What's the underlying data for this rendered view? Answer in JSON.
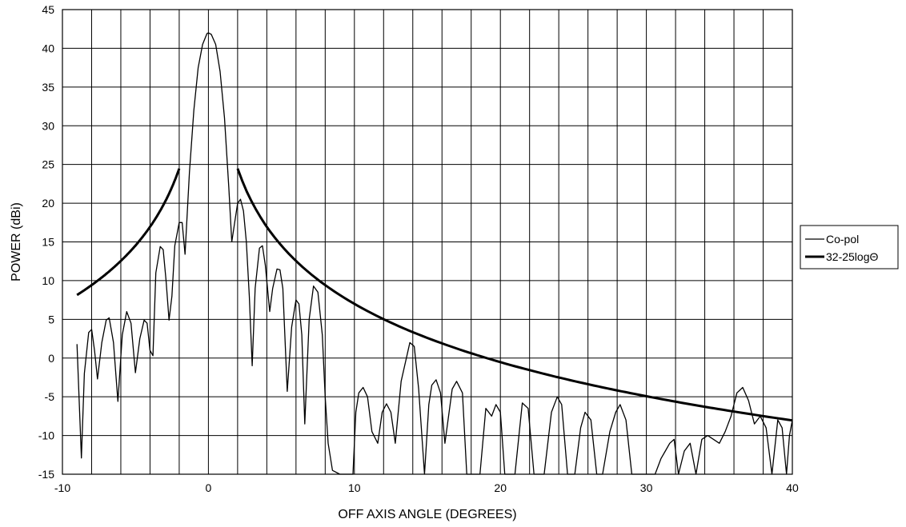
{
  "chart_data": {
    "type": "line",
    "xlabel": "OFF AXIS ANGLE (DEGREES)",
    "ylabel": "POWER (dBi)",
    "xlim": [
      -10,
      40
    ],
    "ylim": [
      -15,
      45
    ],
    "x_ticks": [
      -10,
      0,
      10,
      20,
      30,
      40
    ],
    "x_tick_labels": [
      "-10",
      "0",
      "10",
      "20",
      "30",
      "40"
    ],
    "x_minor_step": 2,
    "y_ticks": [
      -15,
      -10,
      -5,
      0,
      5,
      10,
      15,
      20,
      25,
      30,
      35,
      40,
      45
    ],
    "y_tick_labels": [
      "-15",
      "-10",
      "-5",
      "0",
      "5",
      "10",
      "15",
      "20",
      "25",
      "30",
      "35",
      "40",
      "45"
    ],
    "grid": true,
    "legend": "right",
    "series": [
      {
        "name": "Co-pol",
        "color": "#000000",
        "width": 1.3,
        "points": [
          [
            -9.0,
            1.8
          ],
          [
            -8.7,
            -12.9
          ],
          [
            -8.5,
            -2.0
          ],
          [
            -8.2,
            3.3
          ],
          [
            -8.0,
            3.7
          ],
          [
            -7.8,
            1.0
          ],
          [
            -7.6,
            -2.7
          ],
          [
            -7.3,
            2.0
          ],
          [
            -7.0,
            4.9
          ],
          [
            -6.8,
            5.2
          ],
          [
            -6.5,
            2.0
          ],
          [
            -6.2,
            -5.6
          ],
          [
            -5.9,
            3.0
          ],
          [
            -5.6,
            6.0
          ],
          [
            -5.3,
            4.5
          ],
          [
            -5.0,
            -1.9
          ],
          [
            -4.7,
            2.5
          ],
          [
            -4.4,
            4.9
          ],
          [
            -4.2,
            4.5
          ],
          [
            -4.0,
            1.0
          ],
          [
            -3.8,
            0.3
          ],
          [
            -3.6,
            11.0
          ],
          [
            -3.3,
            14.4
          ],
          [
            -3.1,
            14.0
          ],
          [
            -2.9,
            10.0
          ],
          [
            -2.7,
            4.9
          ],
          [
            -2.5,
            8.0
          ],
          [
            -2.3,
            14.5
          ],
          [
            -2.0,
            17.5
          ],
          [
            -1.8,
            17.5
          ],
          [
            -1.6,
            13.4
          ],
          [
            -1.3,
            24.0
          ],
          [
            -1.0,
            32.0
          ],
          [
            -0.7,
            37.5
          ],
          [
            -0.4,
            40.5
          ],
          [
            -0.1,
            41.9
          ],
          [
            0.0,
            42.0
          ],
          [
            0.2,
            41.8
          ],
          [
            0.5,
            40.5
          ],
          [
            0.8,
            37.0
          ],
          [
            1.1,
            31.0
          ],
          [
            1.4,
            22.0
          ],
          [
            1.6,
            15.0
          ],
          [
            1.8,
            17.5
          ],
          [
            2.0,
            20.0
          ],
          [
            2.2,
            20.5
          ],
          [
            2.4,
            19.0
          ],
          [
            2.6,
            15.0
          ],
          [
            2.8,
            8.0
          ],
          [
            3.0,
            -1.0
          ],
          [
            3.2,
            9.0
          ],
          [
            3.5,
            14.2
          ],
          [
            3.7,
            14.5
          ],
          [
            3.9,
            12.0
          ],
          [
            4.2,
            6.0
          ],
          [
            4.4,
            9.0
          ],
          [
            4.7,
            11.5
          ],
          [
            4.9,
            11.4
          ],
          [
            5.1,
            9.0
          ],
          [
            5.4,
            -4.3
          ],
          [
            5.7,
            4.0
          ],
          [
            6.0,
            7.5
          ],
          [
            6.2,
            7.0
          ],
          [
            6.4,
            3.0
          ],
          [
            6.6,
            -8.5
          ],
          [
            6.9,
            5.0
          ],
          [
            7.2,
            9.3
          ],
          [
            7.5,
            8.5
          ],
          [
            7.8,
            3.0
          ],
          [
            8.0,
            -5.0
          ],
          [
            8.2,
            -11.0
          ],
          [
            8.5,
            -14.5
          ],
          [
            9.0,
            -15.0
          ],
          [
            9.9,
            -15.0
          ],
          [
            10.1,
            -7.0
          ],
          [
            10.3,
            -4.5
          ],
          [
            10.6,
            -3.8
          ],
          [
            10.9,
            -5.0
          ],
          [
            11.2,
            -9.5
          ],
          [
            11.6,
            -11.0
          ],
          [
            11.9,
            -7.0
          ],
          [
            12.2,
            -5.9
          ],
          [
            12.5,
            -7.0
          ],
          [
            12.8,
            -11.0
          ],
          [
            13.2,
            -3.0
          ],
          [
            13.8,
            2.0
          ],
          [
            14.1,
            1.5
          ],
          [
            14.4,
            -4.0
          ],
          [
            14.8,
            -15.0
          ],
          [
            15.1,
            -6.0
          ],
          [
            15.3,
            -3.5
          ],
          [
            15.6,
            -2.8
          ],
          [
            15.9,
            -4.5
          ],
          [
            16.2,
            -11.0
          ],
          [
            16.7,
            -4.0
          ],
          [
            17.0,
            -3.0
          ],
          [
            17.4,
            -4.5
          ],
          [
            17.7,
            -15.0
          ],
          [
            18.6,
            -15.0
          ],
          [
            19.0,
            -6.5
          ],
          [
            19.4,
            -7.5
          ],
          [
            19.7,
            -6.0
          ],
          [
            20.0,
            -7.0
          ],
          [
            20.3,
            -15.0
          ],
          [
            21.0,
            -15.0
          ],
          [
            21.5,
            -5.8
          ],
          [
            21.9,
            -6.5
          ],
          [
            22.3,
            -15.0
          ],
          [
            23.0,
            -15.0
          ],
          [
            23.5,
            -7.0
          ],
          [
            23.9,
            -5.0
          ],
          [
            24.2,
            -6.0
          ],
          [
            24.6,
            -15.0
          ],
          [
            25.1,
            -15.0
          ],
          [
            25.5,
            -9.0
          ],
          [
            25.8,
            -7.0
          ],
          [
            26.2,
            -8.0
          ],
          [
            26.6,
            -15.0
          ],
          [
            27.0,
            -15.0
          ],
          [
            27.5,
            -9.5
          ],
          [
            27.9,
            -7.0
          ],
          [
            28.2,
            -6.0
          ],
          [
            28.6,
            -8.0
          ],
          [
            29.0,
            -15.0
          ],
          [
            30.6,
            -15.0
          ],
          [
            31.0,
            -13.0
          ],
          [
            31.3,
            -12.0
          ],
          [
            31.6,
            -11.0
          ],
          [
            31.9,
            -10.5
          ],
          [
            32.2,
            -15.0
          ],
          [
            32.6,
            -12.0
          ],
          [
            33.0,
            -11.0
          ],
          [
            33.4,
            -15.0
          ],
          [
            33.8,
            -10.5
          ],
          [
            34.2,
            -10.0
          ],
          [
            34.6,
            -10.5
          ],
          [
            35.0,
            -11.0
          ],
          [
            35.4,
            -9.5
          ],
          [
            35.8,
            -7.5
          ],
          [
            36.2,
            -4.5
          ],
          [
            36.6,
            -3.8
          ],
          [
            37.0,
            -5.5
          ],
          [
            37.4,
            -8.5
          ],
          [
            37.8,
            -7.5
          ],
          [
            38.2,
            -9.0
          ],
          [
            38.6,
            -15.0
          ],
          [
            39.0,
            -8.0
          ],
          [
            39.3,
            -9.0
          ],
          [
            39.6,
            -15.0
          ],
          [
            39.8,
            -10.0
          ],
          [
            40.0,
            -8.0
          ]
        ]
      },
      {
        "name": "32-25logΘ",
        "color": "#000000",
        "width": 3,
        "formula": "32-25log",
        "segments": [
          [
            -9.0,
            -2.0
          ],
          [
            2.0,
            40.0
          ]
        ]
      }
    ]
  }
}
